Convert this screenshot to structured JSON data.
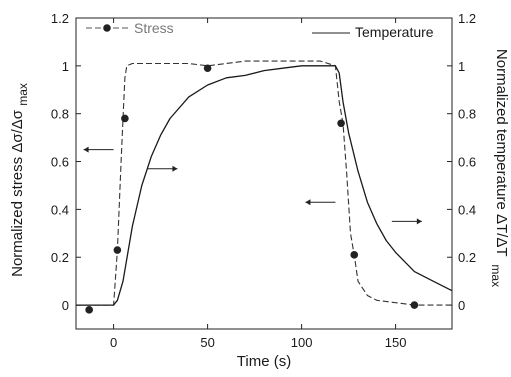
{
  "chart_data": {
    "type": "line",
    "xlabel": "Time (s)",
    "ylabel_left": "Normalized stress Δσ/Δσ",
    "ylabel_left_sub": "max",
    "ylabel_right": "Normalized temperature ΔT/ΔT",
    "ylabel_right_sub": "max",
    "xlim": [
      -20,
      180
    ],
    "ylim": [
      -0.1,
      1.2
    ],
    "x_ticks": [
      0,
      50,
      100,
      150
    ],
    "x_tick_labels": [
      "0",
      "50",
      "100",
      "150"
    ],
    "y_ticks": [
      0,
      0.2,
      0.4,
      0.6,
      0.8,
      1.0,
      1.2
    ],
    "y_tick_labels": [
      "0",
      "0.2",
      "0.4",
      "0.6",
      "0.8",
      "1",
      "1.2"
    ],
    "legend": [
      {
        "label": "Stress",
        "style": "dashed-with-markers",
        "color": "#777777"
      },
      {
        "label": "Temperature",
        "style": "solid",
        "color": "#222222"
      }
    ],
    "series": [
      {
        "name": "Stress",
        "axis": "left",
        "line_style": "dashed",
        "x": [
          -20,
          -15,
          -10,
          -5,
          0,
          2,
          4,
          5,
          6,
          7,
          10,
          20,
          30,
          40,
          50,
          60,
          70,
          80,
          90,
          100,
          110,
          118,
          120,
          122,
          124,
          126,
          128,
          130,
          135,
          140,
          150,
          160,
          170,
          180
        ],
        "y": [
          0,
          0,
          0,
          0,
          0,
          0.23,
          0.6,
          0.78,
          0.95,
          1.0,
          1.01,
          1.01,
          1.01,
          1.01,
          1.0,
          1.01,
          1.02,
          1.02,
          1.02,
          1.02,
          1.02,
          1.0,
          0.85,
          0.76,
          0.55,
          0.3,
          0.21,
          0.1,
          0.04,
          0.02,
          0.01,
          0.0,
          0.0,
          0.0
        ]
      },
      {
        "name": "Stress markers",
        "axis": "left",
        "x": [
          -13,
          2,
          6,
          50,
          121,
          128,
          160
        ],
        "y": [
          -0.02,
          0.23,
          0.78,
          0.99,
          0.76,
          0.21,
          0.0
        ]
      },
      {
        "name": "Temperature",
        "axis": "right",
        "line_style": "solid",
        "x": [
          -20,
          -10,
          0,
          2,
          5,
          10,
          15,
          20,
          25,
          30,
          40,
          50,
          60,
          70,
          80,
          90,
          100,
          110,
          118,
          120,
          122,
          125,
          130,
          135,
          140,
          145,
          150,
          160,
          170,
          180
        ],
        "y": [
          0,
          0,
          0,
          0.02,
          0.1,
          0.33,
          0.5,
          0.62,
          0.71,
          0.78,
          0.87,
          0.92,
          0.95,
          0.96,
          0.98,
          0.99,
          1.0,
          1.0,
          1.0,
          0.97,
          0.85,
          0.72,
          0.56,
          0.43,
          0.34,
          0.27,
          0.22,
          0.14,
          0.1,
          0.06
        ]
      }
    ],
    "annotations": [
      {
        "type": "arrow",
        "direction": "left",
        "x": 0,
        "y": 0.65,
        "meaning": "stress curve -> left axis"
      },
      {
        "type": "arrow",
        "direction": "right",
        "x": 18,
        "y": 0.57,
        "meaning": "temperature curve -> right axis"
      },
      {
        "type": "arrow",
        "direction": "left",
        "x": 118,
        "y": 0.43,
        "meaning": "stress curve -> left axis"
      },
      {
        "type": "arrow",
        "direction": "right",
        "x": 148,
        "y": 0.35,
        "meaning": "temperature curve -> right axis"
      }
    ],
    "legend_position": "top",
    "grid": false
  }
}
